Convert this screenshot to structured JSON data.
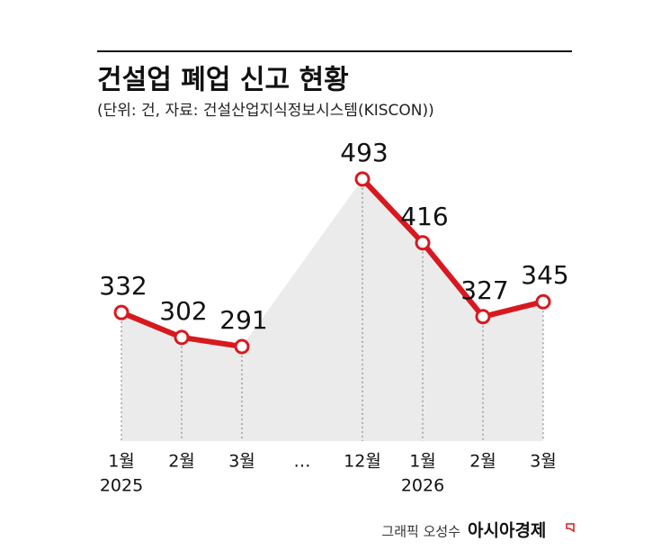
{
  "chart_data": {
    "type": "line",
    "title": "건설업 폐업 신고 현황",
    "subtitle": "(단위: 건, 자료: 건설산업지식정보시스템(KISCON))",
    "categories": [
      "1월",
      "2월",
      "3월",
      "…",
      "12월",
      "1월",
      "2월",
      "3월"
    ],
    "years": [
      "2025",
      null,
      null,
      null,
      null,
      "2026",
      null,
      null
    ],
    "values": [
      332,
      302,
      291,
      null,
      493,
      416,
      327,
      345
    ],
    "color": "#d7191f",
    "area_color": "#ebebeb",
    "ylim": [
      177,
      546
    ],
    "credit": "그래픽 오성수",
    "brand": "아시아경제"
  }
}
